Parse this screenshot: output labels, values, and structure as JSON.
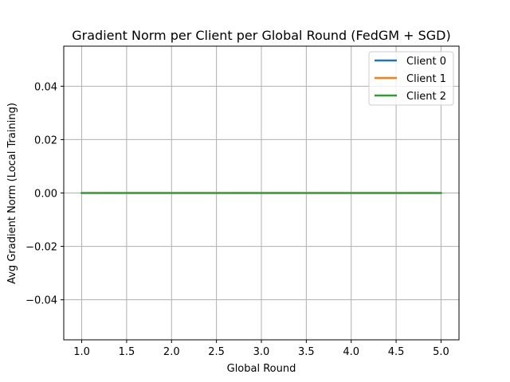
{
  "chart_data": {
    "type": "line",
    "title": "Gradient Norm per Client per Global Round (FedGM + SGD)",
    "xlabel": "Global Round",
    "ylabel": "Avg Gradient Norm (Local Training)",
    "x": [
      1,
      2,
      3,
      4,
      5
    ],
    "xlim": [
      0.8,
      5.2
    ],
    "ylim": [
      -0.055,
      0.055
    ],
    "xticks": [
      1.0,
      1.5,
      2.0,
      2.5,
      3.0,
      3.5,
      4.0,
      4.5,
      5.0
    ],
    "xtick_labels": [
      "1.0",
      "1.5",
      "2.0",
      "2.5",
      "3.0",
      "3.5",
      "4.0",
      "4.5",
      "5.0"
    ],
    "yticks": [
      -0.04,
      -0.02,
      0.0,
      0.02,
      0.04
    ],
    "ytick_labels": [
      "−0.04",
      "−0.02",
      "0.00",
      "0.02",
      "0.04"
    ],
    "grid": true,
    "legend_position": "top-right",
    "series": [
      {
        "name": "Client 0",
        "color": "#1f77b4",
        "values": [
          0,
          0,
          0,
          0,
          0
        ]
      },
      {
        "name": "Client 1",
        "color": "#ff7f0e",
        "values": [
          0,
          0,
          0,
          0,
          0
        ]
      },
      {
        "name": "Client 2",
        "color": "#2ca02c",
        "values": [
          0,
          0,
          0,
          0,
          0
        ]
      }
    ]
  }
}
